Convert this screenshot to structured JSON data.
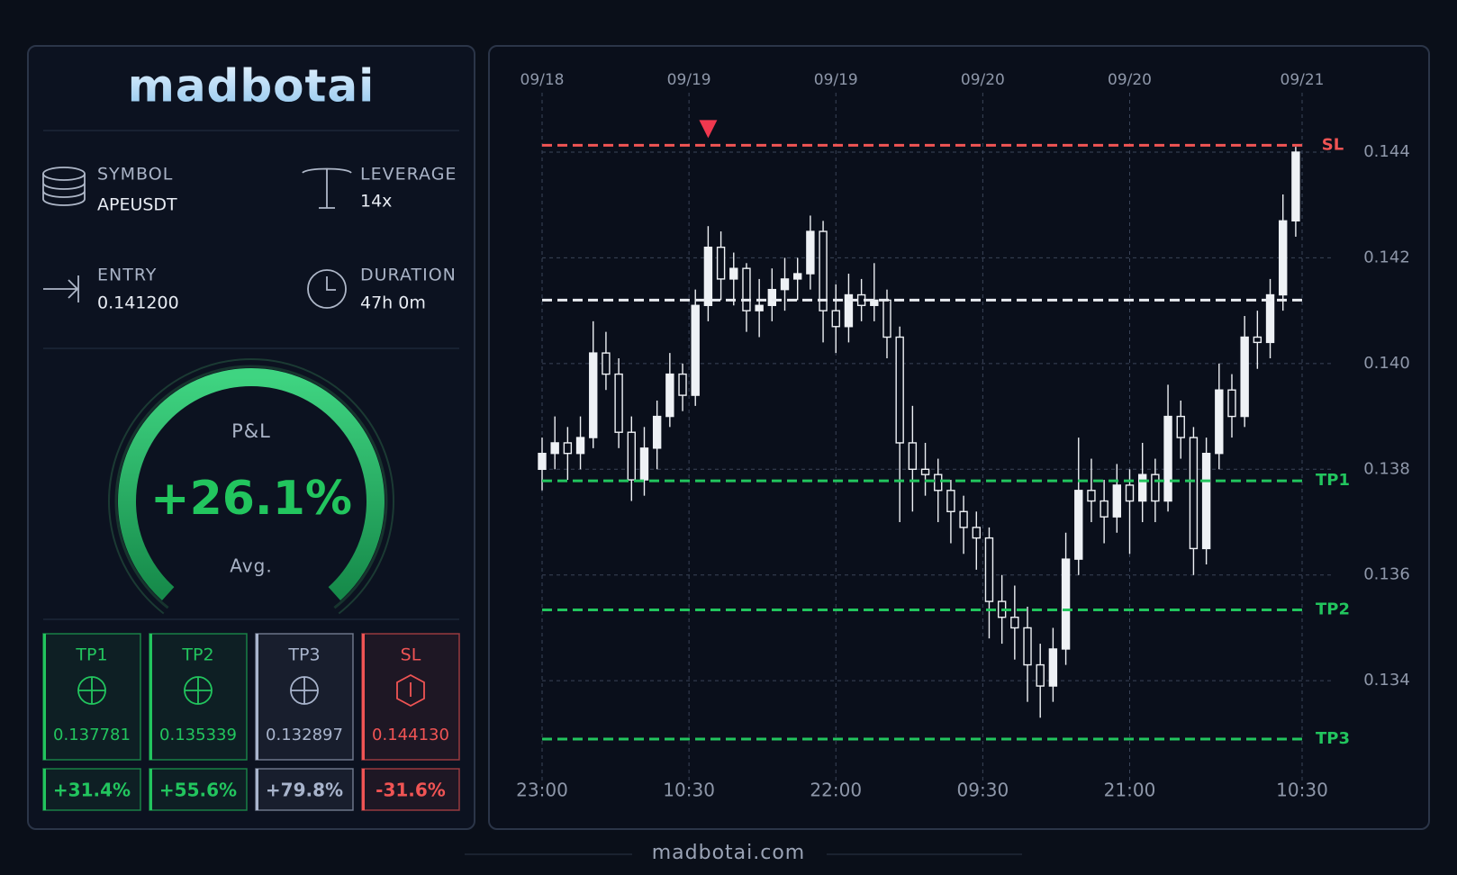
{
  "header": {
    "logo": "madbotai"
  },
  "fields": [
    {
      "label": "SYMBOL",
      "value": "APEUSDT"
    },
    {
      "label": "LEVERAGE",
      "value": "14x"
    },
    {
      "label": "ENTRY",
      "value": "0.141200"
    },
    {
      "label": "DURATION",
      "value": "47h 0m"
    }
  ],
  "pnl": {
    "label": "P&L",
    "value": "+26.1%",
    "sub": "Avg."
  },
  "targets": [
    {
      "label": "TP1",
      "price": "0.137781",
      "pnl": "+31.4%",
      "color": "#22c55e"
    },
    {
      "label": "TP2",
      "price": "0.135339",
      "pnl": "+55.6%",
      "color": "#22c55e"
    },
    {
      "label": "TP3",
      "price": "0.132897",
      "pnl": "+79.8%",
      "color": "#a8b4cc"
    },
    {
      "label": "SL",
      "price": "0.144130",
      "pnl": "-31.6%",
      "color": "#f05454"
    }
  ],
  "footer": {
    "text": "madbotai.com"
  },
  "chart_data": {
    "type": "candlestick",
    "x": [
      0,
      1,
      2,
      3,
      4,
      5,
      6,
      7,
      8,
      9,
      10,
      11,
      12,
      13,
      14,
      15,
      16,
      17,
      18,
      19,
      20,
      21,
      22,
      23,
      24,
      25,
      26,
      27,
      28,
      29,
      30,
      31,
      32,
      33,
      34,
      35,
      36,
      37,
      38,
      39,
      40,
      41,
      42,
      43,
      44,
      45,
      46,
      47,
      48,
      49,
      50,
      51,
      52,
      53,
      54,
      55,
      56,
      57,
      58,
      59
    ],
    "open": [
      0.138,
      0.1383,
      0.1385,
      0.1383,
      0.1386,
      0.1402,
      0.1398,
      0.1387,
      0.1378,
      0.1384,
      0.139,
      0.1398,
      0.1394,
      0.1411,
      0.1422,
      0.1416,
      0.1418,
      0.141,
      0.1411,
      0.1414,
      0.1416,
      0.1417,
      0.1425,
      0.141,
      0.1407,
      0.1413,
      0.1411,
      0.1412,
      0.1405,
      0.1385,
      0.138,
      0.1379,
      0.1376,
      0.1372,
      0.1369,
      0.1367,
      0.1355,
      0.1352,
      0.135,
      0.1343,
      0.1339,
      0.1346,
      0.1363,
      0.1376,
      0.1374,
      0.1371,
      0.1377,
      0.1374,
      0.1379,
      0.1374,
      0.139,
      0.1386,
      0.1365,
      0.1383,
      0.1395,
      0.139,
      0.1405,
      0.1404,
      0.1413,
      0.1427
    ],
    "high": [
      0.1386,
      0.139,
      0.1388,
      0.139,
      0.1408,
      0.1406,
      0.1401,
      0.139,
      0.1388,
      0.1393,
      0.1402,
      0.14,
      0.1414,
      0.1426,
      0.1425,
      0.1421,
      0.1419,
      0.1416,
      0.1418,
      0.142,
      0.142,
      0.1428,
      0.1427,
      0.1415,
      0.1417,
      0.1416,
      0.1419,
      0.1414,
      0.1407,
      0.1392,
      0.1385,
      0.1382,
      0.1378,
      0.1375,
      0.1372,
      0.1369,
      0.136,
      0.1358,
      0.1354,
      0.1347,
      0.135,
      0.1368,
      0.1386,
      0.1382,
      0.1378,
      0.1381,
      0.138,
      0.1385,
      0.1382,
      0.1396,
      0.1393,
      0.1388,
      0.1386,
      0.14,
      0.1398,
      0.1409,
      0.141,
      0.1416,
      0.1432,
      0.1441
    ],
    "low": [
      0.1376,
      0.138,
      0.1378,
      0.138,
      0.1384,
      0.1395,
      0.1384,
      0.1374,
      0.1375,
      0.138,
      0.1388,
      0.1391,
      0.1392,
      0.1408,
      0.1412,
      0.1411,
      0.1406,
      0.1405,
      0.1408,
      0.141,
      0.1412,
      0.1414,
      0.1404,
      0.1402,
      0.1404,
      0.1408,
      0.1408,
      0.1401,
      0.137,
      0.1372,
      0.1375,
      0.137,
      0.1366,
      0.1364,
      0.1361,
      0.1348,
      0.1347,
      0.1344,
      0.1336,
      0.1333,
      0.1336,
      0.1343,
      0.136,
      0.137,
      0.1366,
      0.1368,
      0.1364,
      0.137,
      0.137,
      0.1372,
      0.1382,
      0.136,
      0.1362,
      0.138,
      0.1386,
      0.1388,
      0.1399,
      0.1401,
      0.141,
      0.1424
    ],
    "close": [
      0.1383,
      0.1385,
      0.1383,
      0.1386,
      0.1402,
      0.1398,
      0.1387,
      0.1378,
      0.1384,
      0.139,
      0.1398,
      0.1394,
      0.1411,
      0.1422,
      0.1416,
      0.1418,
      0.141,
      0.1411,
      0.1414,
      0.1416,
      0.1417,
      0.1425,
      0.141,
      0.1407,
      0.1413,
      0.1411,
      0.1412,
      0.1405,
      0.1385,
      0.138,
      0.1379,
      0.1376,
      0.1372,
      0.1369,
      0.1367,
      0.1355,
      0.1352,
      0.135,
      0.1343,
      0.1339,
      0.1346,
      0.1363,
      0.1376,
      0.1374,
      0.1371,
      0.1377,
      0.1374,
      0.1379,
      0.1374,
      0.139,
      0.1386,
      0.1365,
      0.1383,
      0.1395,
      0.139,
      0.1405,
      0.1404,
      0.1413,
      0.1427,
      0.144
    ],
    "color": "#eef1f5",
    "xlim": [
      0,
      59.5
    ],
    "xticks": [
      {
        "value": 0,
        "label": "23:00"
      },
      {
        "value": 11.5,
        "label": "10:30"
      },
      {
        "value": 23,
        "label": "22:00"
      },
      {
        "value": 34.5,
        "label": "09:30"
      },
      {
        "value": 46,
        "label": "21:00"
      },
      {
        "value": 59.5,
        "label": "10:30"
      }
    ],
    "x_top_labels": [
      "09/18",
      "09/19",
      "09/19",
      "09/20",
      "09/20",
      "09/21"
    ],
    "ylim": [
      0.1323,
      0.1451
    ],
    "yticks": [
      0.134,
      0.136,
      0.138,
      {
        "value": 0.14,
        "label": "0.140"
      },
      0.142,
      0.144
    ],
    "grid": true,
    "levels": [
      {
        "name": "SL",
        "value": 0.14413,
        "color": "#f05454"
      },
      {
        "value": 0.1412,
        "color": "#e8ebf0"
      },
      {
        "name": "TP1",
        "value": 0.137781,
        "color": "#22c55e"
      },
      {
        "name": "TP2",
        "value": 0.135339,
        "color": "#22c55e"
      },
      {
        "name": "TP3",
        "value": 0.132897,
        "color": "#22c55e"
      }
    ],
    "entry_marker": {
      "x": 13,
      "color": "#f0384f"
    }
  }
}
